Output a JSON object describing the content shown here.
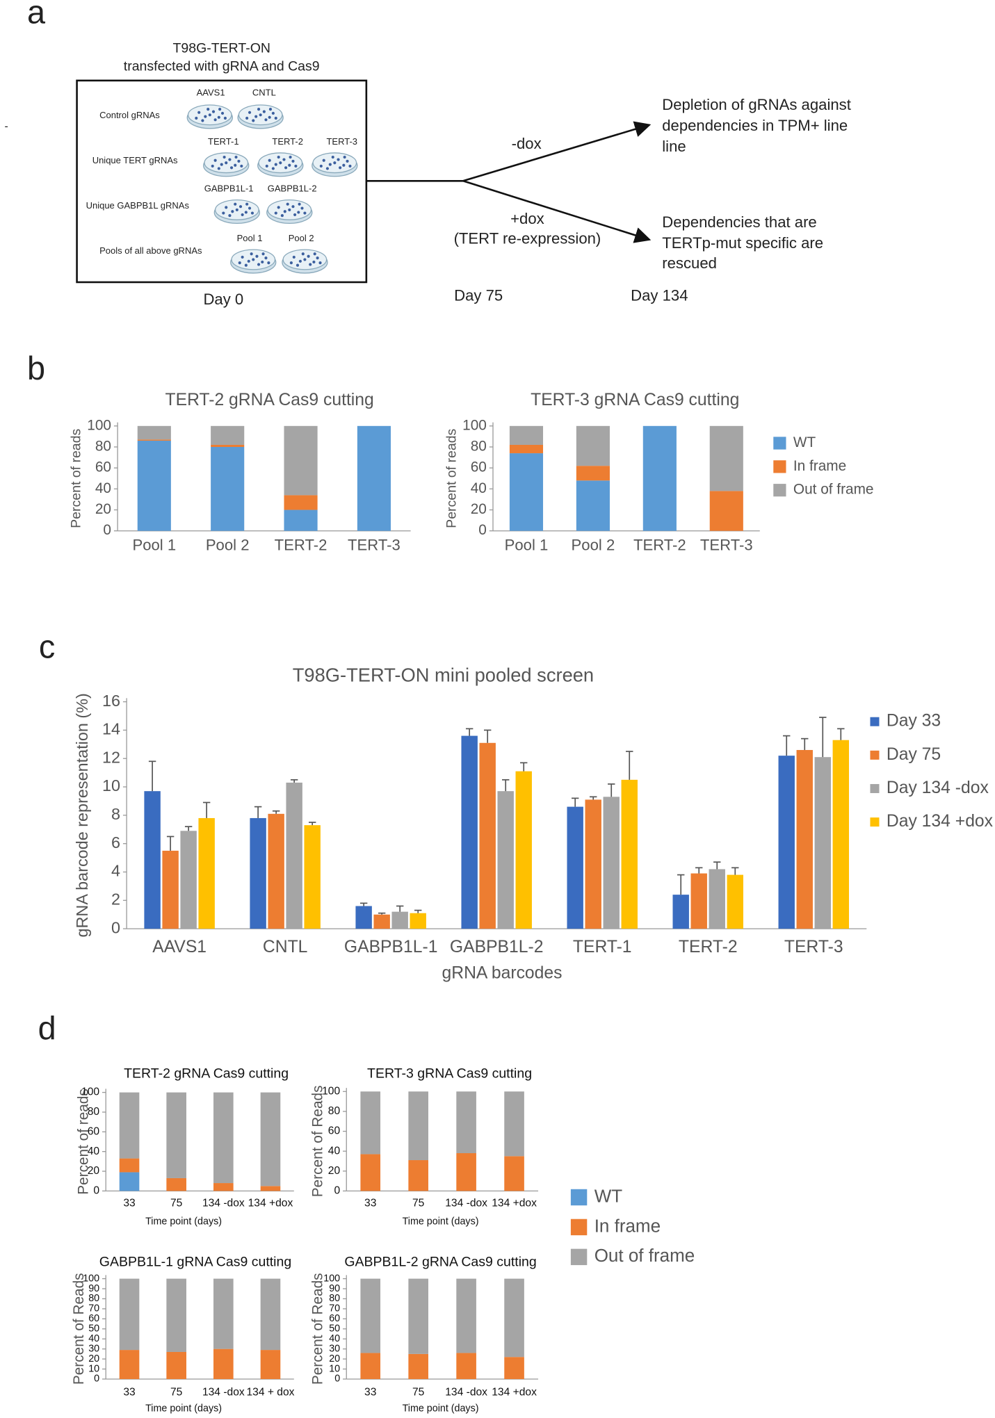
{
  "panel_labels": [
    "a",
    "b",
    "c",
    "d"
  ],
  "diagram": {
    "stray_mark": "-",
    "box_title": [
      "T98G-TERT-ON",
      "transfected with gRNA and Cas9"
    ],
    "groups": [
      {
        "label": "Control gRNAs",
        "items": [
          "AAVS1",
          "CNTL"
        ]
      },
      {
        "label": "Unique TERT gRNAs",
        "items": [
          "TERT-1",
          "TERT-2",
          "TERT-3"
        ]
      },
      {
        "label": "Unique GABPB1L gRNAs",
        "items": [
          "GABPB1L-1",
          "GABPB1L-2"
        ]
      },
      {
        "label": "Pools of all above gRNAs",
        "items": [
          "Pool 1",
          "Pool 2"
        ]
      }
    ],
    "branch_minus": "-dox",
    "branch_plus": [
      "+dox",
      "(TERT re-expression)"
    ],
    "outcome_minus": [
      "Depletion of gRNAs against",
      "dependencies in TPM+ line",
      "line"
    ],
    "outcome_plus": [
      "Dependencies that are",
      "TERTp-mut specific are",
      "rescued"
    ],
    "days": [
      "Day 0",
      "Day 75",
      "Day 134"
    ]
  },
  "chart_data": [
    {
      "type": "stacked_bar",
      "title": "TERT-2 gRNA Cas9 cutting",
      "y_label": "Percent of reads",
      "categories": [
        "Pool 1",
        "Pool 2",
        "TERT-2",
        "TERT-3"
      ],
      "series": [
        {
          "name": "WT",
          "color": "#5b9bd5",
          "values": [
            86,
            80,
            20,
            100
          ]
        },
        {
          "name": "In frame",
          "color": "#ed7d31",
          "values": [
            1,
            2,
            14,
            0
          ]
        },
        {
          "name": "Out of frame",
          "color": "#a5a5a5",
          "values": [
            13,
            18,
            66,
            0
          ]
        }
      ],
      "ylim": [
        0,
        100
      ],
      "yticks": [
        0,
        20,
        40,
        60,
        80,
        100
      ]
    },
    {
      "type": "stacked_bar",
      "title": "TERT-3 gRNA Cas9 cutting",
      "y_label": "Percent of reads",
      "categories": [
        "Pool 1",
        "Pool 2",
        "TERT-2",
        "TERT-3"
      ],
      "series": [
        {
          "name": "WT",
          "color": "#5b9bd5",
          "values": [
            74,
            48,
            100,
            0
          ]
        },
        {
          "name": "In frame",
          "color": "#ed7d31",
          "values": [
            8,
            14,
            0,
            38
          ]
        },
        {
          "name": "Out of frame",
          "color": "#a5a5a5",
          "values": [
            18,
            38,
            0,
            62
          ]
        }
      ],
      "ylim": [
        0,
        100
      ],
      "yticks": [
        0,
        20,
        40,
        60,
        80,
        100
      ],
      "legend": "right"
    },
    {
      "type": "grouped_bar",
      "title": "T98G-TERT-ON mini pooled screen",
      "y_label": "gRNA barcode representation (%)",
      "x_label": "gRNA barcodes",
      "categories": [
        "AAVS1",
        "CNTL",
        "GABPB1L-1",
        "GABPB1L-2",
        "TERT-1",
        "TERT-2",
        "TERT-3"
      ],
      "series": [
        {
          "name": "Day 33",
          "color": "#3a6cc0",
          "values": [
            9.7,
            7.8,
            1.6,
            13.6,
            8.6,
            2.4,
            12.2
          ],
          "errors": [
            2.1,
            0.8,
            0.2,
            0.5,
            0.6,
            1.4,
            1.4
          ]
        },
        {
          "name": "Day 75",
          "color": "#ed7d31",
          "values": [
            5.5,
            8.1,
            1.0,
            13.1,
            9.1,
            3.9,
            12.6
          ],
          "errors": [
            1.0,
            0.2,
            0.1,
            0.9,
            0.2,
            0.4,
            0.8
          ]
        },
        {
          "name": "Day 134 -dox",
          "color": "#a5a5a5",
          "values": [
            6.9,
            10.3,
            1.2,
            9.7,
            9.3,
            4.2,
            12.1
          ],
          "errors": [
            0.3,
            0.2,
            0.4,
            0.8,
            0.9,
            0.5,
            2.8
          ]
        },
        {
          "name": "Day 134 +dox",
          "color": "#ffc000",
          "values": [
            7.8,
            7.3,
            1.1,
            11.1,
            10.5,
            3.8,
            13.3
          ],
          "errors": [
            1.1,
            0.2,
            0.2,
            0.6,
            2.0,
            0.5,
            0.8
          ]
        }
      ],
      "ylim": [
        0,
        16
      ],
      "yticks": [
        0,
        2,
        4,
        6,
        8,
        10,
        12,
        14,
        16
      ],
      "legend": "right"
    },
    {
      "type": "stacked_bar",
      "title": "TERT-2 gRNA Cas9 cutting",
      "y_label": "Percent of reads",
      "x_label": "Time point (days)",
      "categories": [
        "33",
        "75",
        "134 -dox",
        "134 +dox"
      ],
      "series": [
        {
          "name": "WT",
          "color": "#5b9bd5",
          "values": [
            19,
            0,
            0,
            0
          ]
        },
        {
          "name": "In frame",
          "color": "#ed7d31",
          "values": [
            14,
            13,
            8,
            5
          ]
        },
        {
          "name": "Out of frame",
          "color": "#a5a5a5",
          "values": [
            67,
            87,
            92,
            95
          ]
        }
      ],
      "ylim": [
        0,
        100
      ],
      "yticks": [
        0,
        20,
        40,
        60,
        80,
        100
      ]
    },
    {
      "type": "stacked_bar",
      "title": "TERT-3 gRNA Cas9 cutting",
      "y_label": "Percent of Reads",
      "x_label": "Time point (days)",
      "categories": [
        "33",
        "75",
        "134 -dox",
        "134 +dox"
      ],
      "series": [
        {
          "name": "WT",
          "color": "#5b9bd5",
          "values": [
            0,
            0,
            0,
            0
          ]
        },
        {
          "name": "In frame",
          "color": "#ed7d31",
          "values": [
            37,
            31,
            38,
            35
          ]
        },
        {
          "name": "Out of frame",
          "color": "#a5a5a5",
          "values": [
            63,
            69,
            62,
            65
          ]
        }
      ],
      "ylim": [
        0,
        100
      ],
      "yticks": [
        0,
        20,
        40,
        60,
        80,
        100
      ],
      "legend": "right"
    },
    {
      "type": "stacked_bar",
      "title": "GABPB1L-1 gRNA Cas9 cutting",
      "y_label": "Percent of Reads",
      "x_label": "Time point (days)",
      "categories": [
        "33",
        "75",
        "134 -dox",
        "134 + dox"
      ],
      "series": [
        {
          "name": "In frame",
          "color": "#ed7d31",
          "values": [
            29,
            27,
            30,
            29
          ]
        },
        {
          "name": "Out of frame",
          "color": "#a5a5a5",
          "values": [
            71,
            73,
            70,
            71
          ]
        }
      ],
      "ylim": [
        0,
        100
      ],
      "yticks": [
        0,
        10,
        20,
        30,
        40,
        50,
        60,
        70,
        80,
        90,
        100
      ]
    },
    {
      "type": "stacked_bar",
      "title": "GABPB1L-2 gRNA Cas9 cutting",
      "y_label": "Percent of Reads",
      "x_label": "Time point (days)",
      "categories": [
        "33",
        "75",
        "134 -dox",
        "134 +dox"
      ],
      "series": [
        {
          "name": "In frame",
          "color": "#ed7d31",
          "values": [
            26,
            25,
            26,
            22
          ]
        },
        {
          "name": "Out of frame",
          "color": "#a5a5a5",
          "values": [
            74,
            75,
            74,
            78
          ]
        }
      ],
      "ylim": [
        0,
        100
      ],
      "yticks": [
        0,
        10,
        20,
        30,
        40,
        50,
        60,
        70,
        80,
        90,
        100
      ]
    }
  ]
}
